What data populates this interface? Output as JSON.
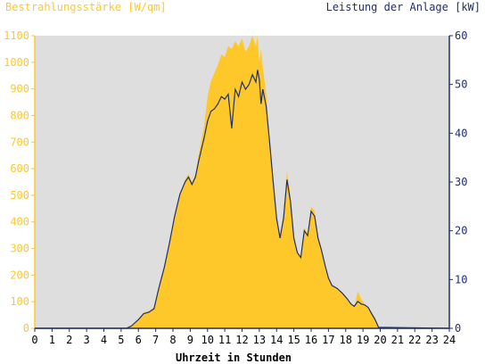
{
  "colors": {
    "irradiance": "#ffc82a",
    "power": "#1f2f6e",
    "plot_bg": "#dedede",
    "left_axis_text": "#ffc82a",
    "right_axis_text": "#1f2f6e"
  },
  "chart_data": {
    "type": "area",
    "title_left": "Bestrahlungsstärke [W/qm]",
    "title_right": "Leistung der Anlage [kW]",
    "xlabel": "Uhrzeit in Stunden",
    "x_ticks": [
      "0",
      "1",
      "2",
      "3",
      "4",
      "5",
      "6",
      "7",
      "8",
      "9",
      "10",
      "11",
      "12",
      "13",
      "14",
      "15",
      "16",
      "17",
      "18",
      "19",
      "20",
      "21",
      "22",
      "23",
      "24"
    ],
    "xlim": [
      0,
      24
    ],
    "y_left": {
      "label": "Bestrahlungsstärke [W/qm]",
      "ylim": [
        0,
        1100
      ],
      "ticks": [
        "0",
        "100",
        "200",
        "300",
        "400",
        "500",
        "600",
        "700",
        "800",
        "900",
        "1000",
        "1100"
      ]
    },
    "y_right": {
      "label": "Leistung der Anlage [kW]",
      "ylim": [
        0,
        60
      ],
      "ticks": [
        "0",
        "10",
        "20",
        "30",
        "40",
        "50",
        "60"
      ]
    },
    "grid": false,
    "series": [
      {
        "name": "Bestrahlungsstärke [W/qm]",
        "axis": "left",
        "style": "filled-area",
        "x": [
          0,
          5.3,
          5.6,
          6.0,
          6.3,
          6.6,
          6.9,
          7.2,
          7.5,
          7.8,
          8.1,
          8.4,
          8.7,
          8.9,
          9.1,
          9.3,
          9.5,
          9.8,
          10.0,
          10.2,
          10.4,
          10.6,
          10.8,
          11.0,
          11.2,
          11.4,
          11.6,
          11.8,
          12.0,
          12.2,
          12.4,
          12.6,
          12.8,
          12.9,
          13.0,
          13.1,
          13.2,
          13.4,
          13.6,
          13.8,
          14.0,
          14.2,
          14.4,
          14.6,
          14.8,
          15.0,
          15.2,
          15.4,
          15.6,
          15.8,
          16.0,
          16.2,
          16.4,
          16.6,
          16.8,
          17.0,
          17.2,
          17.5,
          17.8,
          18.1,
          18.3,
          18.5,
          18.7,
          18.9,
          19.1,
          19.3,
          19.5,
          19.7,
          19.9,
          24
        ],
        "y": [
          0,
          0,
          10,
          35,
          60,
          65,
          80,
          160,
          230,
          320,
          420,
          500,
          560,
          580,
          550,
          580,
          660,
          760,
          870,
          930,
          960,
          990,
          1030,
          1020,
          1060,
          1050,
          1080,
          1060,
          1090,
          1040,
          1060,
          1100,
          1060,
          1100,
          1000,
          1050,
          980,
          880,
          700,
          560,
          420,
          350,
          430,
          590,
          500,
          350,
          290,
          270,
          380,
          360,
          460,
          440,
          350,
          300,
          240,
          190,
          160,
          150,
          130,
          110,
          90,
          80,
          140,
          110,
          90,
          80,
          60,
          40,
          5,
          0
        ]
      },
      {
        "name": "Leistung der Anlage [kW]",
        "axis": "right",
        "style": "line",
        "x": [
          0,
          5.3,
          5.6,
          6.0,
          6.3,
          6.6,
          6.9,
          7.2,
          7.5,
          7.8,
          8.1,
          8.4,
          8.7,
          8.9,
          9.1,
          9.3,
          9.5,
          9.8,
          10.0,
          10.2,
          10.4,
          10.6,
          10.8,
          11.0,
          11.2,
          11.4,
          11.6,
          11.8,
          12.0,
          12.2,
          12.4,
          12.6,
          12.8,
          12.9,
          13.0,
          13.1,
          13.2,
          13.4,
          13.6,
          13.8,
          14.0,
          14.2,
          14.4,
          14.6,
          14.8,
          15.0,
          15.2,
          15.4,
          15.6,
          15.8,
          16.0,
          16.2,
          16.4,
          16.6,
          16.8,
          17.0,
          17.2,
          17.5,
          17.8,
          18.1,
          18.3,
          18.5,
          18.7,
          18.9,
          19.1,
          19.3,
          19.5,
          19.7,
          19.9,
          24
        ],
        "y": [
          0,
          0,
          0.5,
          1.8,
          3.0,
          3.3,
          4.0,
          8.5,
          12.5,
          17.5,
          23.0,
          27.5,
          30.0,
          31.0,
          29.5,
          31.0,
          34.5,
          39.0,
          42.5,
          44.5,
          45.0,
          46.0,
          47.5,
          47.0,
          48.0,
          41.0,
          49.0,
          47.5,
          50.5,
          49.0,
          50.0,
          52.0,
          50.5,
          53.0,
          51.0,
          46.0,
          49.0,
          45.5,
          38.0,
          30.0,
          22.5,
          18.5,
          22.5,
          30.5,
          26.0,
          18.5,
          15.5,
          14.5,
          20.0,
          19.0,
          24.0,
          23.0,
          18.5,
          16.0,
          13.0,
          10.3,
          8.8,
          8.2,
          7.2,
          6.0,
          5.0,
          4.5,
          5.5,
          5.0,
          4.8,
          4.3,
          3.0,
          1.8,
          0.2,
          0
        ]
      }
    ]
  }
}
